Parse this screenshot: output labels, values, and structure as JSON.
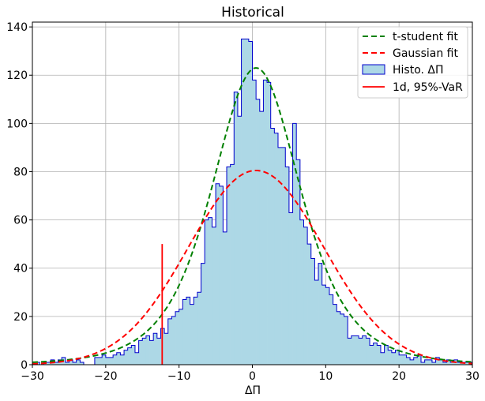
{
  "chart_data": {
    "type": "bar",
    "title": "Historical",
    "xlabel": "ΔΠ",
    "ylabel": "",
    "xlim": [
      -30,
      30
    ],
    "ylim": [
      0,
      142
    ],
    "xticks": [
      -30,
      -20,
      -10,
      0,
      10,
      20,
      30
    ],
    "yticks": [
      0,
      20,
      40,
      60,
      80,
      100,
      120,
      140
    ],
    "grid": true,
    "legend_position": "top-right",
    "histogram": {
      "name": "Histo. ΔΠ",
      "bin_edges": [
        -30,
        -29.5,
        -29,
        -28.5,
        -28,
        -27.5,
        -27,
        -26.5,
        -26,
        -25.5,
        -25,
        -24.5,
        -24,
        -23.5,
        -23,
        -22.5,
        -22,
        -21.5,
        -21,
        -20.5,
        -20,
        -19.5,
        -19,
        -18.5,
        -18,
        -17.5,
        -17,
        -16.5,
        -16,
        -15.5,
        -15,
        -14.5,
        -14,
        -13.5,
        -13,
        -12.5,
        -12,
        -11.5,
        -11,
        -10.5,
        -10,
        -9.5,
        -9,
        -8.5,
        -8,
        -7.5,
        -7,
        -6.5,
        -6,
        -5.5,
        -5,
        -4.5,
        -4,
        -3.5,
        -3,
        -2.5,
        -2,
        -1.5,
        -1,
        -0.5,
        0,
        0.5,
        1,
        1.5,
        2,
        2.5,
        3,
        3.5,
        4,
        4.5,
        5,
        5.5,
        6,
        6.5,
        7,
        7.5,
        8,
        8.5,
        9,
        9.5,
        10,
        10.5,
        11,
        11.5,
        12,
        12.5,
        13,
        13.5,
        14,
        14.5,
        15,
        15.5,
        16,
        16.5,
        17,
        17.5,
        18,
        18.5,
        19,
        19.5,
        20,
        20.5,
        21,
        21.5,
        22,
        22.5,
        23,
        23.5,
        24,
        24.5,
        25,
        25.5,
        26,
        26.5,
        27,
        27.5,
        28,
        28.5,
        29,
        29.5,
        30
      ],
      "counts": [
        1,
        1,
        0,
        1,
        1,
        2,
        1,
        2,
        3,
        1,
        2,
        1,
        2,
        1,
        0,
        0,
        0,
        3,
        3,
        4,
        3,
        3,
        4,
        5,
        4,
        6,
        7,
        8,
        5,
        10,
        11,
        12,
        10,
        13,
        11,
        15,
        13,
        19,
        20,
        22,
        23,
        27,
        28,
        25,
        28,
        30,
        42,
        60,
        61,
        57,
        75,
        74,
        55,
        82,
        83,
        113,
        103,
        135,
        135,
        134,
        118,
        110,
        105,
        118,
        117,
        98,
        96,
        90,
        90,
        82,
        63,
        100,
        85,
        60,
        57,
        50,
        44,
        35,
        42,
        33,
        32,
        29,
        25,
        22,
        21,
        20,
        11,
        12,
        12,
        11,
        12,
        11,
        8,
        9,
        8,
        5,
        8,
        6,
        5,
        6,
        4,
        4,
        3,
        2,
        3,
        4,
        1,
        2,
        2,
        1,
        3,
        2,
        1,
        2,
        1,
        2,
        1,
        1,
        1,
        1
      ],
      "fill": "#add8e6",
      "edge": "#0000cc"
    },
    "series": [
      {
        "name": "t-student fit",
        "type": "line",
        "color": "#008000",
        "dash": "dashed",
        "peak": 123,
        "center": 0.5,
        "sigma": 6.3,
        "dof": 4
      },
      {
        "name": "Gaussian fit",
        "type": "line",
        "color": "#ff0000",
        "dash": "dashed",
        "peak": 80.5,
        "center": 0.5,
        "sigma": 9.2
      },
      {
        "name": "1d, 95%-VaR",
        "type": "vline",
        "color": "#ff0000",
        "x": -12.3,
        "y_range": [
          0,
          50
        ]
      }
    ]
  }
}
